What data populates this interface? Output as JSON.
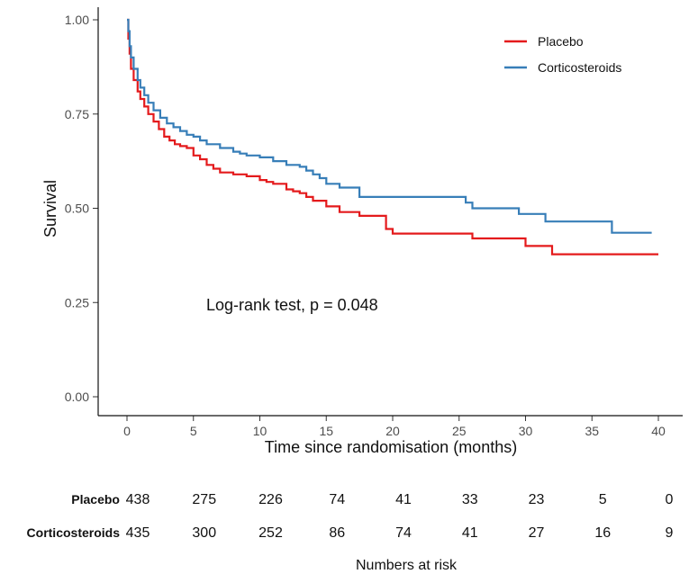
{
  "chart_data": {
    "type": "line",
    "subtype": "kaplan-meier",
    "xlabel": "Time since randomisation (months)",
    "ylabel": "Survival",
    "xlim": [
      0,
      40
    ],
    "ylim": [
      0,
      1
    ],
    "xticks": [
      0,
      5,
      10,
      15,
      20,
      25,
      30,
      35,
      40
    ],
    "yticks": [
      0.0,
      0.25,
      0.5,
      0.75,
      1.0
    ],
    "ytick_labels": [
      "0.00",
      "0.25",
      "0.50",
      "0.75",
      "1.00"
    ],
    "grid": false,
    "legend_position": "top-right",
    "annotation": "Log-rank test, p = 0.048",
    "colors": {
      "Placebo": "#e41a1c",
      "Corticosteroids": "#377eb8"
    },
    "series": [
      {
        "name": "Placebo",
        "x": [
          0,
          0.1,
          0.2,
          0.3,
          0.5,
          0.8,
          1.0,
          1.3,
          1.6,
          2.0,
          2.4,
          2.8,
          3.2,
          3.6,
          4.0,
          4.5,
          5.0,
          5.5,
          6.0,
          6.5,
          7.0,
          8.0,
          9.0,
          10.0,
          10.5,
          11.0,
          12.0,
          12.5,
          13.0,
          13.5,
          14.0,
          15.0,
          16.0,
          17.5,
          19.5,
          20.0,
          26.0,
          30.0,
          32.0,
          40.0
        ],
        "y": [
          1.0,
          0.95,
          0.91,
          0.87,
          0.84,
          0.81,
          0.79,
          0.77,
          0.75,
          0.73,
          0.71,
          0.69,
          0.68,
          0.67,
          0.665,
          0.66,
          0.64,
          0.63,
          0.615,
          0.605,
          0.595,
          0.59,
          0.585,
          0.575,
          0.57,
          0.565,
          0.55,
          0.545,
          0.54,
          0.53,
          0.52,
          0.505,
          0.49,
          0.48,
          0.445,
          0.433,
          0.42,
          0.4,
          0.378,
          0.378
        ]
      },
      {
        "name": "Corticosteroids",
        "x": [
          0,
          0.1,
          0.2,
          0.3,
          0.5,
          0.8,
          1.0,
          1.3,
          1.6,
          2.0,
          2.5,
          3.0,
          3.5,
          4.0,
          4.5,
          5.0,
          5.5,
          6.0,
          7.0,
          8.0,
          8.5,
          9.0,
          10.0,
          11.0,
          12.0,
          13.0,
          13.5,
          14.0,
          14.5,
          15.0,
          16.0,
          17.5,
          25.5,
          26.0,
          29.5,
          31.5,
          36.5,
          39.5
        ],
        "y": [
          1.0,
          0.97,
          0.93,
          0.9,
          0.87,
          0.84,
          0.82,
          0.8,
          0.78,
          0.76,
          0.74,
          0.725,
          0.715,
          0.705,
          0.695,
          0.69,
          0.68,
          0.67,
          0.66,
          0.65,
          0.645,
          0.64,
          0.635,
          0.625,
          0.615,
          0.61,
          0.6,
          0.59,
          0.58,
          0.565,
          0.555,
          0.53,
          0.515,
          0.5,
          0.485,
          0.465,
          0.435,
          0.435
        ]
      }
    ]
  },
  "risk_table": {
    "title": "Numbers at risk",
    "times": [
      0,
      5,
      10,
      15,
      20,
      25,
      30,
      35,
      40
    ],
    "rows": [
      {
        "label": "Placebo",
        "values": [
          "438",
          "275",
          "226",
          "74",
          "41",
          "33",
          "23",
          "5",
          "0"
        ]
      },
      {
        "label": "Corticosteroids",
        "values": [
          "435",
          "300",
          "252",
          "86",
          "74",
          "41",
          "27",
          "16",
          "9"
        ]
      }
    ]
  }
}
